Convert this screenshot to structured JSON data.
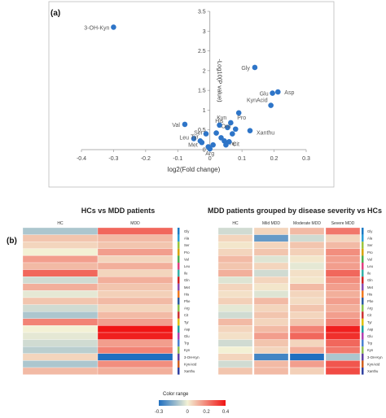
{
  "panel_a_label": "(a)",
  "panel_b_label": "(b)",
  "colors": {
    "point": "#2e75c8",
    "neg": "#1f6fc0",
    "mid": "#f3f1d5",
    "pos": "#f01414"
  },
  "chart_data": [
    {
      "type": "scatter",
      "title": "",
      "xlabel": "log2(Fold change)",
      "ylabel": "-Log10(P value)",
      "xlim": [
        -0.4,
        0.3
      ],
      "ylim": [
        0,
        3.5
      ],
      "xticks": [
        "-0.4",
        "-0.3",
        "-0.2",
        "-0.1",
        "0",
        "0.1",
        "0.2",
        "0.3"
      ],
      "yticks": [
        "0",
        "0.5",
        "1",
        "1.5",
        "2",
        "2.5",
        "3",
        "3.5"
      ],
      "grid": false,
      "points": [
        {
          "label": "3-OH-Kyn",
          "x": -0.3,
          "y": 3.1
        },
        {
          "label": "Gly",
          "x": 0.14,
          "y": 2.08
        },
        {
          "label": "Glu",
          "x": 0.195,
          "y": 1.43
        },
        {
          "label": "Asp",
          "x": 0.212,
          "y": 1.46
        },
        {
          "label": "KynAcid",
          "x": 0.19,
          "y": 1.12
        },
        {
          "label": "Kyn",
          "x": 0.065,
          "y": 0.68
        },
        {
          "label": "Val",
          "x": -0.078,
          "y": 0.64
        },
        {
          "label": "Xanthu",
          "x": 0.125,
          "y": 0.48
        },
        {
          "label": "Pro",
          "x": 0.09,
          "y": 0.93
        },
        {
          "label": "His",
          "x": 0.055,
          "y": 0.56
        },
        {
          "label": "Orn",
          "x": 0.08,
          "y": 0.52
        },
        {
          "label": "Ser",
          "x": -0.012,
          "y": 0.4
        },
        {
          "label": "Leu",
          "x": -0.05,
          "y": 0.28
        },
        {
          "label": "Tyr",
          "x": -0.03,
          "y": 0.22
        },
        {
          "label": "Met",
          "x": -0.025,
          "y": 0.18
        },
        {
          "label": "Phe",
          "x": 0.045,
          "y": 0.22
        },
        {
          "label": "Cit",
          "x": 0.06,
          "y": 0.2
        },
        {
          "label": "Arg",
          "x": 0.0,
          "y": 0.02
        },
        {
          "label": "",
          "x": 0.02,
          "y": 0.42
        },
        {
          "label": "",
          "x": 0.035,
          "y": 0.3
        },
        {
          "label": "",
          "x": 0.01,
          "y": 0.12
        },
        {
          "label": "",
          "x": -0.005,
          "y": 0.07
        },
        {
          "label": "",
          "x": 0.05,
          "y": 0.12
        },
        {
          "label": "",
          "x": 0.03,
          "y": 0.62
        },
        {
          "label": "",
          "x": 0.07,
          "y": 0.4
        }
      ]
    },
    {
      "type": "heatmap",
      "title": "HCs vs MDD patients",
      "columns": [
        "HC",
        "MDD"
      ],
      "rows": [
        "Gly",
        "Ala",
        "Ser",
        "Pro",
        "Val",
        "Leu",
        "Ile",
        "Gln",
        "Met",
        "His",
        "Phe",
        "Arg",
        "Cit",
        "Tyr",
        "Asp",
        "Glu",
        "Trp",
        "Kyn",
        "3-OH-Kyn",
        "KynAcid",
        "Xanthu"
      ],
      "values": [
        [
          -0.1,
          0.25
        ],
        [
          0.08,
          0.1
        ],
        [
          0.05,
          0.08
        ],
        [
          0.0,
          0.15
        ],
        [
          0.15,
          0.05
        ],
        [
          0.1,
          0.12
        ],
        [
          0.25,
          0.05
        ],
        [
          -0.05,
          0.12
        ],
        [
          0.12,
          0.08
        ],
        [
          -0.02,
          0.06
        ],
        [
          0.08,
          0.1
        ],
        [
          -0.05,
          0.05
        ],
        [
          -0.1,
          0.1
        ],
        [
          0.2,
          0.15
        ],
        [
          0.0,
          0.4
        ],
        [
          -0.02,
          0.38
        ],
        [
          -0.05,
          0.15
        ],
        [
          -0.08,
          0.2
        ],
        [
          0.05,
          -0.3
        ],
        [
          -0.1,
          0.18
        ],
        [
          0.1,
          0.12
        ]
      ],
      "colorbar": {
        "title": "Color range",
        "ticks": [
          "-0.3",
          "0",
          "0.2",
          "0.4"
        ],
        "min": -0.3,
        "max": 0.4
      }
    },
    {
      "type": "heatmap",
      "title": "MDD patients grouped by disease severity vs HCs",
      "columns": [
        "HC",
        "Mild MDD",
        "Moderate MDD",
        "Severe MDD"
      ],
      "rows": [
        "Gly",
        "Ala",
        "Ser",
        "Pro",
        "Val",
        "Leu",
        "Ile",
        "Gln",
        "Met",
        "His",
        "Phe",
        "Arg",
        "Cit",
        "Tyr",
        "Asp",
        "Glu",
        "Trp",
        "Kyn",
        "3-OH-Kyn",
        "KynAcid",
        "Xanthu"
      ],
      "values": [
        [
          -0.05,
          0.05,
          0.1,
          0.22
        ],
        [
          0.05,
          -0.2,
          -0.05,
          0.05
        ],
        [
          0.02,
          0.05,
          0.08,
          0.1
        ],
        [
          0.05,
          0.08,
          0.06,
          0.18
        ],
        [
          0.1,
          -0.03,
          0.02,
          0.15
        ],
        [
          0.08,
          0.05,
          -0.02,
          0.15
        ],
        [
          0.12,
          -0.05,
          0.03,
          0.25
        ],
        [
          -0.03,
          0.05,
          0.02,
          0.18
        ],
        [
          0.05,
          0.02,
          0.1,
          0.15
        ],
        [
          0.03,
          -0.03,
          0.05,
          0.12
        ],
        [
          0.06,
          0.1,
          0.04,
          0.15
        ],
        [
          -0.02,
          0.05,
          0.08,
          0.12
        ],
        [
          -0.05,
          0.08,
          0.05,
          0.15
        ],
        [
          0.1,
          0.05,
          0.08,
          0.2
        ],
        [
          0.05,
          0.1,
          0.2,
          0.38
        ],
        [
          0.03,
          0.15,
          0.25,
          0.35
        ],
        [
          -0.05,
          0.08,
          0.05,
          0.25
        ],
        [
          0.0,
          0.05,
          0.12,
          0.22
        ],
        [
          0.05,
          -0.25,
          -0.3,
          -0.1
        ],
        [
          -0.05,
          0.1,
          0.15,
          0.28
        ],
        [
          0.08,
          0.1,
          0.06,
          0.3
        ]
      ]
    }
  ]
}
